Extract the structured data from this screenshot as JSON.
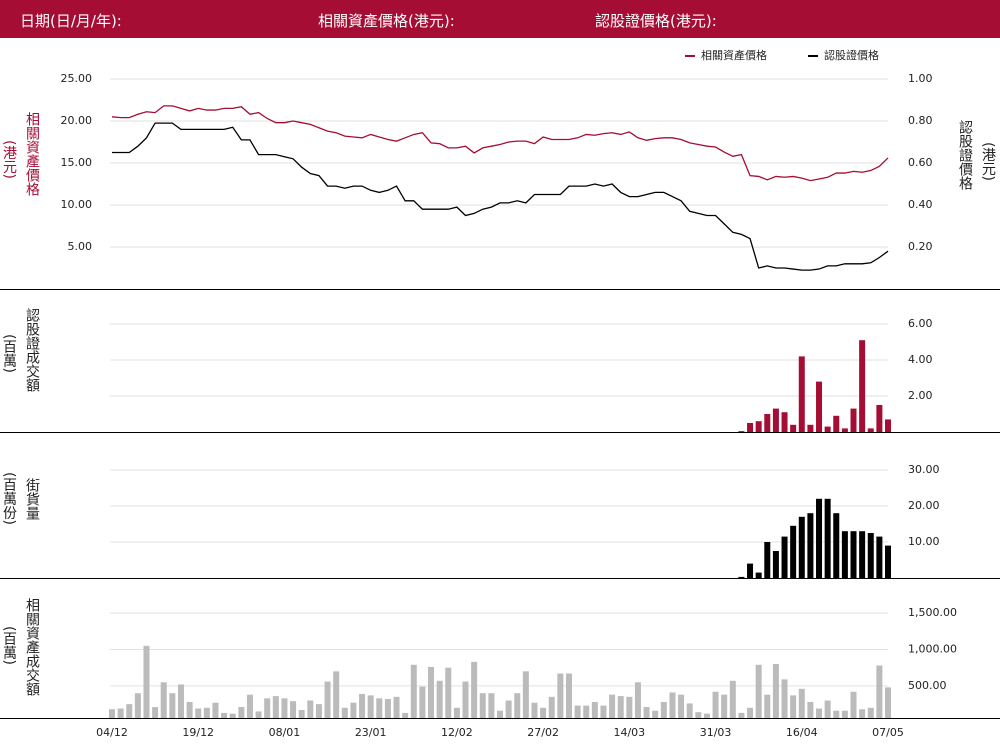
{
  "header": {
    "date_label": "日期(日/月/年):",
    "underlying_label": "相關資產價格(港元):",
    "warrant_label": "認股證價格(港元):"
  },
  "chart_data": [
    {
      "type": "line",
      "ylabel": "相關資產價格",
      "ylabel_unit": "(港元)",
      "y2label": "認股證價格",
      "y2label_unit": "(港元)",
      "ylim": [
        0,
        25
      ],
      "yticks": [
        {
          "value": 5,
          "label": "5.00"
        },
        {
          "value": 10,
          "label": "10.00"
        },
        {
          "value": 15,
          "label": "15.00"
        },
        {
          "value": 20,
          "label": "20.00"
        },
        {
          "value": 25,
          "label": "25.00"
        }
      ],
      "y2lim": [
        0,
        1
      ],
      "y2ticks": [
        {
          "value": 0.2,
          "label": "0.20"
        },
        {
          "value": 0.4,
          "label": "0.40"
        },
        {
          "value": 0.6,
          "label": "0.60"
        },
        {
          "value": 0.8,
          "label": "0.80"
        },
        {
          "value": 1,
          "label": "1.00"
        }
      ],
      "grid": true,
      "legend": "top-right",
      "series": [
        {
          "name": "相關資產價格",
          "color": "#a50d34",
          "values": [
            20.5,
            20.4,
            20.4,
            20.8,
            21.1,
            21.0,
            21.8,
            21.8,
            21.5,
            21.2,
            21.5,
            21.3,
            21.3,
            21.5,
            21.5,
            21.7,
            20.8,
            21.0,
            20.3,
            19.8,
            19.8,
            20.0,
            19.8,
            19.6,
            19.2,
            18.8,
            18.6,
            18.2,
            18.1,
            18.0,
            18.4,
            18.1,
            17.8,
            17.6,
            18.0,
            18.4,
            18.6,
            17.4,
            17.3,
            16.8,
            16.8,
            17.0,
            16.2,
            16.8,
            17.0,
            17.2,
            17.5,
            17.6,
            17.6,
            17.3,
            18.1,
            17.8,
            17.8,
            17.8,
            18.0,
            18.4,
            18.3,
            18.5,
            18.6,
            18.4,
            18.7,
            18.0,
            17.7,
            17.9,
            18.0,
            18.0,
            17.8,
            17.4,
            17.2,
            17.0,
            16.9,
            16.3,
            15.8,
            16.0,
            13.5,
            13.4,
            13.0,
            13.4,
            13.3,
            13.4,
            13.2,
            12.9,
            13.1,
            13.3,
            13.8,
            13.8,
            14.0,
            13.9,
            14.1,
            14.6,
            15.6
          ]
        },
        {
          "name": "認股證價格",
          "color": "#000000",
          "axis": "y2",
          "values": [
            0.65,
            0.65,
            0.65,
            0.68,
            0.72,
            0.79,
            0.79,
            0.79,
            0.76,
            0.76,
            0.76,
            0.76,
            0.76,
            0.76,
            0.77,
            0.71,
            0.71,
            0.64,
            0.64,
            0.64,
            0.63,
            0.62,
            0.58,
            0.55,
            0.54,
            0.49,
            0.49,
            0.48,
            0.49,
            0.49,
            0.47,
            0.46,
            0.47,
            0.49,
            0.42,
            0.42,
            0.38,
            0.38,
            0.38,
            0.38,
            0.39,
            0.35,
            0.36,
            0.38,
            0.39,
            0.41,
            0.41,
            0.42,
            0.41,
            0.45,
            0.45,
            0.45,
            0.45,
            0.49,
            0.49,
            0.49,
            0.5,
            0.49,
            0.5,
            0.46,
            0.44,
            0.44,
            0.45,
            0.46,
            0.46,
            0.44,
            0.42,
            0.37,
            0.36,
            0.35,
            0.35,
            0.31,
            0.27,
            0.26,
            0.24,
            0.1,
            0.11,
            0.1,
            0.1,
            0.095,
            0.09,
            0.09,
            0.095,
            0.11,
            0.11,
            0.12,
            0.12,
            0.12,
            0.125,
            0.15,
            0.18
          ]
        }
      ]
    },
    {
      "type": "bar",
      "ylabel": "認股證成交額",
      "ylabel_unit": "(百萬)",
      "color": "#a50d34",
      "grid": true,
      "ylim": [
        0,
        6
      ],
      "yticks": [
        {
          "value": 2,
          "label": "2.00"
        },
        {
          "value": 4,
          "label": "4.00"
        },
        {
          "value": 6,
          "label": "6.00"
        }
      ],
      "values": [
        0,
        0,
        0,
        0,
        0,
        0,
        0,
        0,
        0,
        0,
        0,
        0,
        0,
        0,
        0,
        0,
        0,
        0,
        0,
        0,
        0,
        0,
        0,
        0,
        0,
        0,
        0,
        0,
        0,
        0,
        0,
        0,
        0,
        0,
        0,
        0,
        0,
        0,
        0,
        0,
        0,
        0,
        0,
        0,
        0,
        0,
        0,
        0,
        0,
        0,
        0,
        0,
        0,
        0,
        0,
        0,
        0,
        0,
        0,
        0,
        0,
        0,
        0,
        0,
        0,
        0,
        0,
        0,
        0,
        0,
        0,
        0,
        0,
        0.05,
        0.5,
        0.6,
        1.0,
        1.3,
        1.1,
        0.4,
        4.2,
        0.4,
        2.8,
        0.3,
        0.9,
        0.2,
        1.3,
        5.1,
        0.2,
        1.5,
        0.7
      ]
    },
    {
      "type": "bar",
      "ylabel": "街貨量",
      "ylabel_unit": "(百萬份)",
      "color": "#000000",
      "grid": true,
      "ylim": [
        0,
        30
      ],
      "yticks": [
        {
          "value": 10,
          "label": "10.00"
        },
        {
          "value": 20,
          "label": "20.00"
        },
        {
          "value": 30,
          "label": "30.00"
        }
      ],
      "values": [
        0,
        0,
        0,
        0,
        0,
        0,
        0,
        0,
        0,
        0,
        0,
        0,
        0,
        0,
        0,
        0,
        0,
        0,
        0,
        0,
        0,
        0,
        0,
        0,
        0,
        0,
        0,
        0,
        0,
        0,
        0,
        0,
        0,
        0,
        0,
        0,
        0,
        0,
        0,
        0,
        0,
        0,
        0,
        0,
        0,
        0,
        0,
        0,
        0,
        0,
        0,
        0,
        0,
        0,
        0,
        0,
        0,
        0,
        0,
        0,
        0,
        0,
        0,
        0,
        0,
        0,
        0,
        0,
        0,
        0,
        0,
        0,
        0,
        0.3,
        4,
        1.5,
        10,
        7.5,
        11.5,
        14.5,
        17,
        18,
        22,
        22,
        18,
        13,
        13,
        13,
        12.5,
        11.5,
        9
      ]
    },
    {
      "type": "bar",
      "ylabel": "相關資產成交額",
      "ylabel_unit": "(百萬)",
      "color": "#bbbbbb",
      "grid": true,
      "ylim": [
        60,
        1500
      ],
      "yticks": [
        {
          "value": 500,
          "label": "500.00"
        },
        {
          "value": 1000,
          "label": "1,000.00"
        },
        {
          "value": 1500,
          "label": "1,500.00"
        }
      ],
      "categories": [
        "04/12",
        null,
        null,
        null,
        null,
        null,
        null,
        null,
        null,
        null,
        "19/12",
        null,
        null,
        null,
        null,
        null,
        null,
        null,
        null,
        null,
        "08/01",
        null,
        null,
        null,
        null,
        null,
        null,
        null,
        null,
        null,
        "23/01",
        null,
        null,
        null,
        null,
        null,
        null,
        null,
        null,
        null,
        "12/02",
        null,
        null,
        null,
        null,
        null,
        null,
        null,
        null,
        null,
        "27/02",
        null,
        null,
        null,
        null,
        null,
        null,
        null,
        null,
        null,
        "14/03",
        null,
        null,
        null,
        null,
        null,
        null,
        null,
        null,
        null,
        "31/03",
        null,
        null,
        null,
        null,
        null,
        null,
        null,
        null,
        null,
        "16/04",
        null,
        null,
        null,
        null,
        null,
        null,
        null,
        null,
        null,
        "07/05"
      ],
      "values": [
        180,
        190,
        250,
        400,
        1050,
        210,
        550,
        400,
        520,
        280,
        190,
        200,
        270,
        130,
        120,
        210,
        380,
        150,
        330,
        360,
        330,
        290,
        170,
        300,
        250,
        560,
        700,
        200,
        270,
        390,
        370,
        330,
        320,
        350,
        130,
        790,
        490,
        760,
        570,
        750,
        200,
        560,
        830,
        400,
        400,
        160,
        300,
        400,
        700,
        270,
        200,
        350,
        670,
        670,
        230,
        230,
        280,
        230,
        380,
        360,
        350,
        550,
        210,
        160,
        280,
        410,
        380,
        260,
        140,
        120,
        420,
        380,
        570,
        130,
        200,
        790,
        380,
        800,
        590,
        370,
        460,
        280,
        190,
        300,
        160,
        160,
        420,
        180,
        200,
        780,
        480
      ]
    }
  ]
}
